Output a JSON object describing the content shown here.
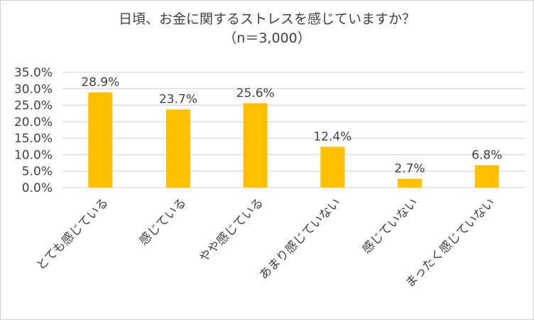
{
  "chart_data": {
    "type": "bar",
    "title": "日頃、お金に関するストレスを感じていますか？",
    "subtitle": "（n＝3,000）",
    "categories": [
      "とても感じている",
      "感じている",
      "やや感じている",
      "あまり感じていない",
      "感じていない",
      "まったく感じていない"
    ],
    "values": [
      28.9,
      23.7,
      25.6,
      12.4,
      2.7,
      6.8
    ],
    "data_labels": [
      "28.9%",
      "23.7%",
      "25.6%",
      "12.4%",
      "2.7%",
      "6.8%"
    ],
    "yticks": [
      "0.0%",
      "5.0%",
      "10.0%",
      "15.0%",
      "20.0%",
      "25.0%",
      "30.0%",
      "35.0%"
    ],
    "ylim": [
      0,
      35
    ],
    "xlabel": "",
    "ylabel": "",
    "grid": true,
    "bar_color": "#FFC000"
  }
}
